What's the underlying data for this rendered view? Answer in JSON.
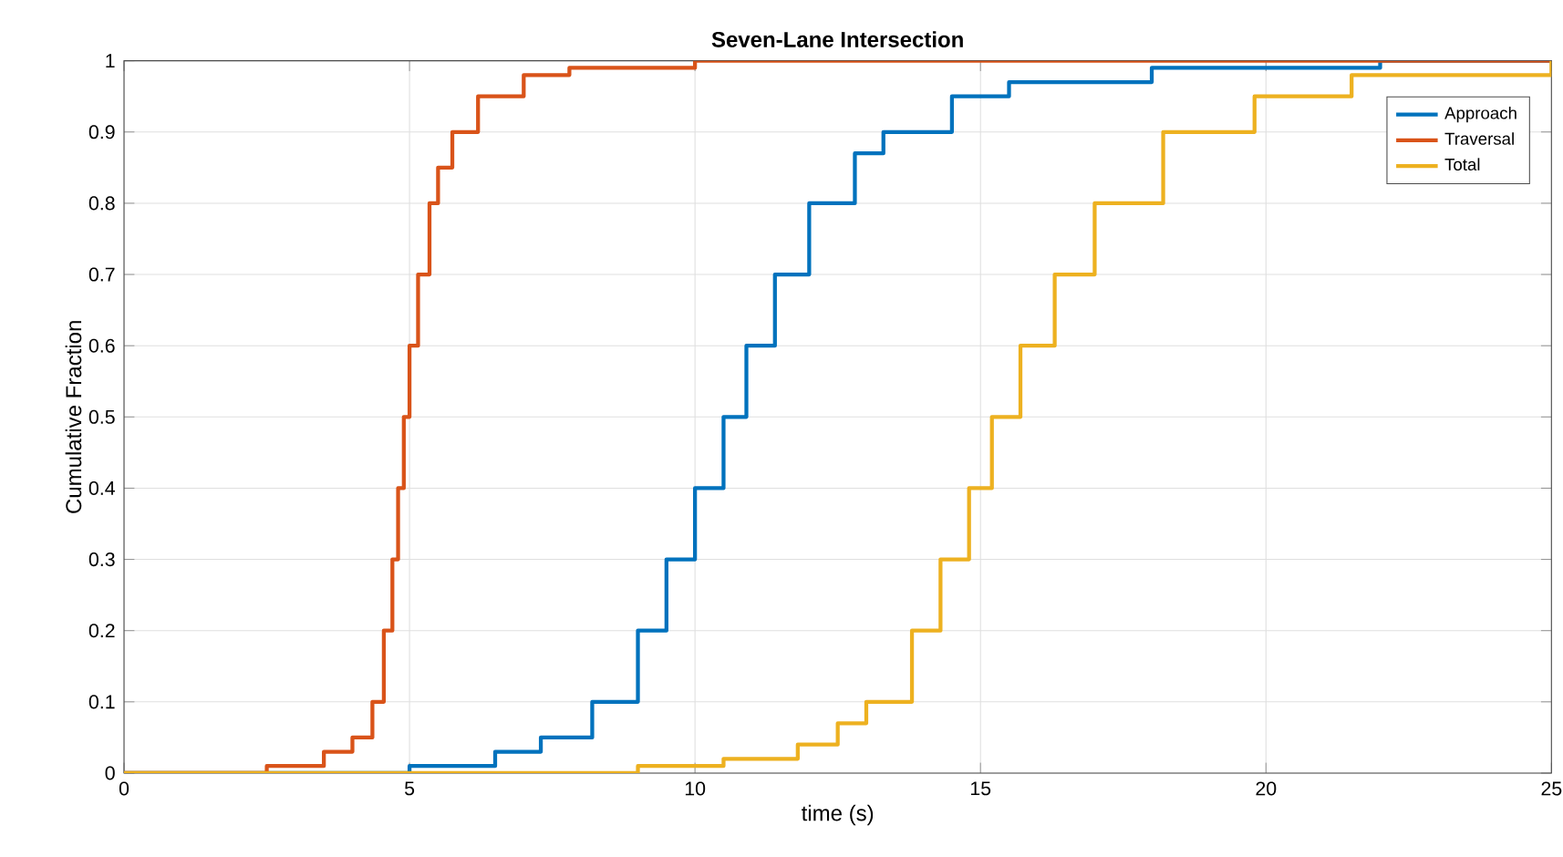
{
  "chart_data": {
    "type": "step",
    "title": "Seven-Lane Intersection",
    "xlabel": "time (s)",
    "ylabel": "Cumulative Fraction",
    "xlim": [
      0,
      25
    ],
    "ylim": [
      0,
      1
    ],
    "xticks": [
      0,
      5,
      10,
      15,
      20,
      25
    ],
    "yticks": [
      0,
      0.1,
      0.2,
      0.3,
      0.4,
      0.5,
      0.6,
      0.7,
      0.8,
      0.9,
      1
    ],
    "grid": true,
    "legend": "top right",
    "marker": "none",
    "line_style": "solid",
    "series": [
      {
        "name": "Approach",
        "color": "#0072bd",
        "x": [
          0,
          5,
          6.5,
          7.3,
          8.2,
          9.0,
          9.5,
          10.0,
          10.5,
          10.9,
          11.4,
          12.0,
          12.8,
          13.3,
          14.5,
          15.5,
          18,
          22,
          25
        ],
        "values": [
          0,
          0.01,
          0.03,
          0.05,
          0.1,
          0.2,
          0.3,
          0.4,
          0.5,
          0.6,
          0.7,
          0.8,
          0.87,
          0.9,
          0.95,
          0.97,
          0.99,
          1,
          1
        ]
      },
      {
        "name": "Traversal",
        "color": "#d95319",
        "x": [
          0,
          2.5,
          3.5,
          4,
          4.35,
          4.55,
          4.7,
          4.8,
          4.9,
          5.0,
          5.15,
          5.35,
          5.5,
          5.75,
          6.2,
          7.0,
          7.8,
          10,
          25
        ],
        "values": [
          0,
          0.01,
          0.03,
          0.05,
          0.1,
          0.2,
          0.3,
          0.4,
          0.5,
          0.6,
          0.7,
          0.8,
          0.85,
          0.9,
          0.95,
          0.98,
          0.99,
          1,
          1
        ]
      },
      {
        "name": "Total",
        "color": "#edb120",
        "x": [
          0,
          9,
          10.5,
          11.8,
          12.5,
          13.0,
          13.8,
          14.3,
          14.8,
          15.2,
          15.7,
          16.3,
          17.0,
          18.2,
          19.8,
          21.5,
          25
        ],
        "values": [
          0,
          0.01,
          0.02,
          0.04,
          0.07,
          0.1,
          0.2,
          0.3,
          0.4,
          0.5,
          0.6,
          0.7,
          0.8,
          0.9,
          0.95,
          0.98,
          1
        ]
      }
    ]
  }
}
